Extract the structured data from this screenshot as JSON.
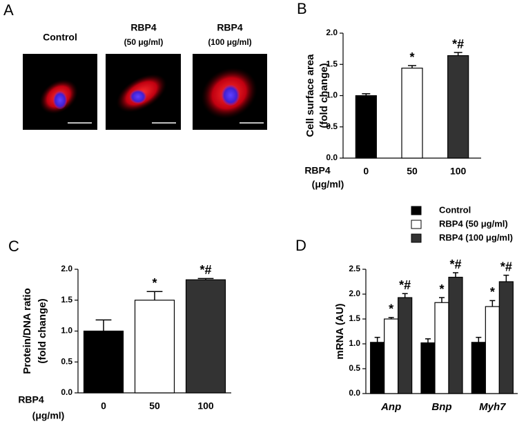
{
  "panel_a": {
    "label": "A",
    "images": [
      {
        "title": "Control"
      },
      {
        "title": "RBP4",
        "subtitle": "(50 μg/ml)"
      },
      {
        "title": "RBP4",
        "subtitle": "(100 μg/ml)"
      }
    ]
  },
  "chart_data": [
    {
      "type": "bar",
      "label": "B",
      "ylabel": [
        "Cell surface area",
        "(fold change)"
      ],
      "x_label": [
        "RBP4",
        "(μg/ml)"
      ],
      "categories": [
        "0",
        "50",
        "100"
      ],
      "values": [
        1.0,
        1.44,
        1.64
      ],
      "errors": [
        0.03,
        0.04,
        0.05
      ],
      "annotations": [
        null,
        "*",
        "*#"
      ],
      "colors": [
        "#000000",
        "#ffffff",
        "#333333"
      ],
      "ylim": [
        0,
        2
      ],
      "yticks": [
        {
          "value": 0,
          "label": "0.0"
        },
        0.5,
        {
          "value": 1,
          "label": "1.0"
        },
        1.5,
        {
          "value": 2,
          "label": "2.0"
        }
      ]
    },
    {
      "type": "bar",
      "label": "C",
      "ylabel": [
        "Protein/DNA ratio",
        "(fold change)"
      ],
      "x_label": [
        "RBP4",
        "(μg/ml)"
      ],
      "categories": [
        "0",
        "50",
        "100"
      ],
      "values": [
        1.0,
        1.5,
        1.83
      ],
      "errors": [
        0.18,
        0.14,
        0.02
      ],
      "annotations": [
        null,
        "*",
        "*#"
      ],
      "colors": [
        "#000000",
        "#ffffff",
        "#333333"
      ],
      "ylim": [
        0,
        2
      ],
      "yticks": [
        {
          "value": 0,
          "label": "0.0"
        },
        0.5,
        {
          "value": 1,
          "label": "1.0"
        },
        1.5,
        {
          "value": 2,
          "label": "2.0"
        }
      ]
    },
    {
      "type": "bar",
      "label": "D",
      "ylabel": [
        "mRNA (AU)"
      ],
      "categories": [
        "Anp",
        "Bnp",
        "Myh7"
      ],
      "series": [
        {
          "name": "Control",
          "color": "#000000",
          "values": [
            1.03,
            1.02,
            1.03
          ],
          "errors": [
            0.1,
            0.08,
            0.1
          ],
          "annotations": [
            null,
            null,
            null
          ]
        },
        {
          "name": "RBP4 (50 μg/ml)",
          "color": "#ffffff",
          "values": [
            1.5,
            1.83,
            1.75
          ],
          "errors": [
            0.03,
            0.1,
            0.12
          ],
          "annotations": [
            "*",
            "*",
            "*"
          ]
        },
        {
          "name": "RBP4 (100 μg/ml)",
          "color": "#333333",
          "values": [
            1.93,
            2.34,
            2.25
          ],
          "errors": [
            0.08,
            0.09,
            0.13
          ],
          "annotations": [
            "*#",
            "*#",
            "*#"
          ]
        }
      ],
      "ylim": [
        0,
        2.5
      ],
      "yticks": [
        {
          "value": 0,
          "label": "0.0"
        },
        0.5,
        {
          "value": 1,
          "label": "1.0"
        },
        1.5,
        {
          "value": 2,
          "label": "2.0"
        },
        2.5
      ]
    }
  ]
}
